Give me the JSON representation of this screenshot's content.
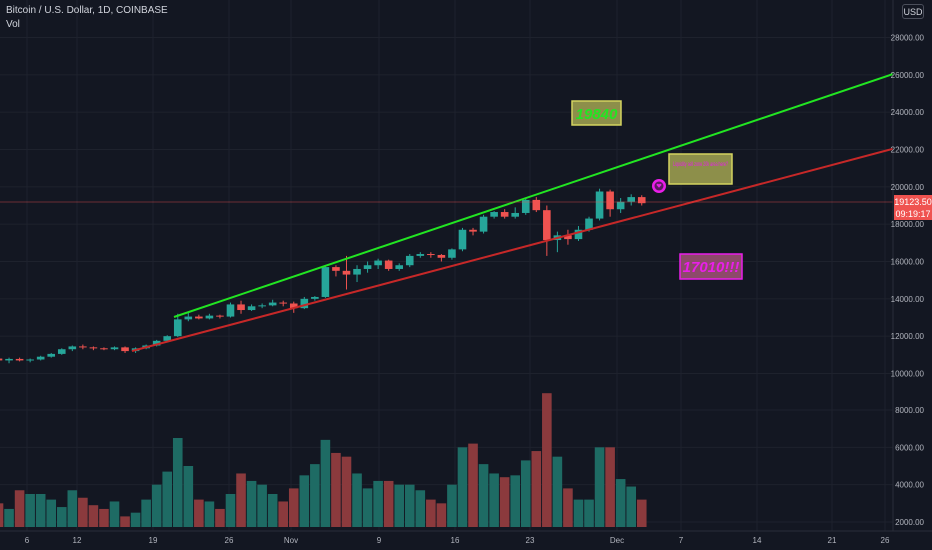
{
  "header": {
    "symbol": "Bitcoin / U.S. Dollar, 1D, COINBASE",
    "volume_label": "Vol",
    "currency": "USD"
  },
  "price_labels": {
    "current": "19123.50",
    "countdown": "09:19:17"
  },
  "annotations": {
    "upper_target": "19840",
    "lower_target": "17010!!!",
    "note": "Liquidity sell zone 20k area here?"
  },
  "colors": {
    "up": "#26a69a",
    "down": "#ef5350",
    "vol_up": "#1e6b64",
    "vol_down": "#8b3a3d",
    "upper_line": "#22e522",
    "lower_line": "#c62828",
    "annotation_green": "#22e522",
    "annotation_magenta": "#e91ee9",
    "annotation_box": "#8d8f4a"
  },
  "chart_data": {
    "type": "candlestick",
    "title": "Bitcoin / U.S. Dollar, 1D, COINBASE",
    "x_ticks": [
      "6",
      "12",
      "19",
      "26",
      "Nov",
      "9",
      "16",
      "23",
      "Dec",
      "7",
      "14",
      "21",
      "26"
    ],
    "y_ticks": [
      "28000.00",
      "26000.00",
      "24000.00",
      "22000.00",
      "20000.00",
      "18000.00",
      "16000.00",
      "14000.00",
      "12000.00",
      "10000.00"
    ],
    "vol_ticks": [
      "8000.00",
      "6000.00",
      "4000.00",
      "2000.00"
    ],
    "ylim": [
      10000,
      28000
    ],
    "candles": [
      [
        10800,
        10820,
        10650,
        10700
      ],
      [
        10700,
        10850,
        10550,
        10780
      ],
      [
        10780,
        10850,
        10650,
        10700
      ],
      [
        10700,
        10800,
        10600,
        10750
      ],
      [
        10750,
        10950,
        10700,
        10900
      ],
      [
        10900,
        11100,
        10850,
        11050
      ],
      [
        11050,
        11350,
        11000,
        11300
      ],
      [
        11300,
        11500,
        11200,
        11450
      ],
      [
        11450,
        11550,
        11300,
        11400
      ],
      [
        11400,
        11450,
        11250,
        11350
      ],
      [
        11350,
        11400,
        11250,
        11300
      ],
      [
        11300,
        11450,
        11250,
        11400
      ],
      [
        11400,
        11450,
        11100,
        11200
      ],
      [
        11200,
        11400,
        11100,
        11350
      ],
      [
        11350,
        11550,
        11300,
        11500
      ],
      [
        11500,
        11800,
        11450,
        11750
      ],
      [
        11750,
        12050,
        11700,
        12000
      ],
      [
        12000,
        13200,
        11950,
        12900
      ],
      [
        12900,
        13250,
        12800,
        13050
      ],
      [
        13050,
        13150,
        12900,
        12950
      ],
      [
        12950,
        13200,
        12900,
        13100
      ],
      [
        13100,
        13150,
        12950,
        13050
      ],
      [
        13050,
        13800,
        13000,
        13700
      ],
      [
        13700,
        13900,
        13200,
        13400
      ],
      [
        13400,
        13700,
        13350,
        13600
      ],
      [
        13600,
        13750,
        13500,
        13650
      ],
      [
        13650,
        13950,
        13600,
        13800
      ],
      [
        13800,
        13900,
        13600,
        13750
      ],
      [
        13750,
        13850,
        13250,
        13500
      ],
      [
        13500,
        14100,
        13450,
        14000
      ],
      [
        14000,
        14150,
        13900,
        14100
      ],
      [
        14100,
        15800,
        14050,
        15700
      ],
      [
        15700,
        15800,
        15200,
        15500
      ],
      [
        15500,
        16300,
        14500,
        15300
      ],
      [
        15300,
        15800,
        14900,
        15600
      ],
      [
        15600,
        16000,
        15400,
        15800
      ],
      [
        15800,
        16150,
        15600,
        16050
      ],
      [
        16050,
        16100,
        15500,
        15600
      ],
      [
        15600,
        15900,
        15500,
        15800
      ],
      [
        15800,
        16400,
        15700,
        16300
      ],
      [
        16300,
        16500,
        16200,
        16400
      ],
      [
        16400,
        16500,
        16200,
        16350
      ],
      [
        16350,
        16400,
        16000,
        16200
      ],
      [
        16200,
        16700,
        16100,
        16650
      ],
      [
        16650,
        17800,
        16550,
        17700
      ],
      [
        17700,
        17800,
        17400,
        17600
      ],
      [
        17600,
        18500,
        17500,
        18400
      ],
      [
        18400,
        18700,
        18300,
        18650
      ],
      [
        18650,
        18800,
        18300,
        18400
      ],
      [
        18400,
        18900,
        18300,
        18600
      ],
      [
        18600,
        19400,
        18500,
        19300
      ],
      [
        19300,
        19450,
        18650,
        18750
      ],
      [
        18750,
        19000,
        16300,
        17150
      ],
      [
        17150,
        17600,
        16500,
        17400
      ],
      [
        17400,
        17700,
        16900,
        17200
      ],
      [
        17200,
        17900,
        17100,
        17700
      ],
      [
        17700,
        18400,
        17600,
        18300
      ],
      [
        18300,
        19900,
        18200,
        19750
      ],
      [
        19750,
        19850,
        18400,
        18800
      ],
      [
        18800,
        19400,
        18600,
        19200
      ],
      [
        19200,
        19600,
        19000,
        19450
      ],
      [
        19450,
        19550,
        19000,
        19123.5
      ]
    ],
    "volume": [
      3000,
      2700,
      3700,
      3500,
      3500,
      3200,
      2800,
      3700,
      3300,
      2900,
      2700,
      3100,
      2300,
      2500,
      3200,
      4000,
      4700,
      6500,
      5000,
      3200,
      3100,
      2700,
      3500,
      4600,
      4200,
      4000,
      3500,
      3100,
      3800,
      4500,
      5100,
      6400,
      5700,
      5500,
      4600,
      3800,
      4200,
      4200,
      4000,
      4000,
      3700,
      3200,
      3000,
      4000,
      6000,
      6200,
      5100,
      4600,
      4400,
      4500,
      5300,
      5800,
      8900,
      5500,
      3800,
      3200,
      3200,
      6000,
      6000,
      4300,
      3900,
      3200
    ]
  }
}
